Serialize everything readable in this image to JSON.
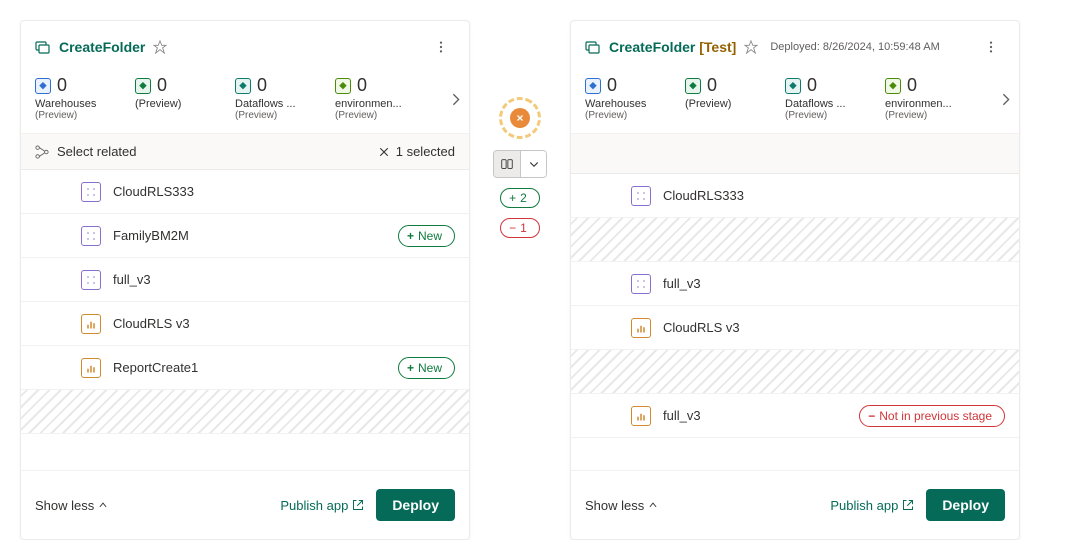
{
  "stageLeft": {
    "title": "CreateFolder",
    "tiles": [
      {
        "count": "0",
        "label": "Warehouses",
        "sub": "(Preview)",
        "iconClass": "ic-blue"
      },
      {
        "count": "0",
        "label": "(Preview)",
        "sub": "",
        "iconClass": "ic-green"
      },
      {
        "count": "0",
        "label": "Dataflows ...",
        "sub": "(Preview)",
        "iconClass": "ic-teal"
      },
      {
        "count": "0",
        "label": "environmen...",
        "sub": "(Preview)",
        "iconClass": "ic-lime"
      }
    ],
    "selectLabel": "Select related",
    "selectedText": "1 selected",
    "items": [
      {
        "type": "model",
        "name": "CloudRLS333"
      },
      {
        "type": "model",
        "name": "FamilyBM2M",
        "badge": "New",
        "badgeKind": "green"
      },
      {
        "type": "model",
        "name": "full_v3"
      },
      {
        "type": "report",
        "name": "CloudRLS v3"
      },
      {
        "type": "report",
        "name": "ReportCreate1",
        "badge": "New",
        "badgeKind": "green"
      },
      {
        "type": "placeholder"
      }
    ],
    "showLess": "Show less",
    "publish": "Publish app",
    "deploy": "Deploy"
  },
  "stageRight": {
    "titleGreen": "CreateFolder ",
    "titleOrange": "[Test]",
    "deployedTs": "Deployed: 8/26/2024, 10:59:48 AM",
    "tiles": [
      {
        "count": "0",
        "label": "Warehouses",
        "sub": "(Preview)",
        "iconClass": "ic-blue"
      },
      {
        "count": "0",
        "label": "(Preview)",
        "sub": "",
        "iconClass": "ic-green"
      },
      {
        "count": "0",
        "label": "Dataflows ...",
        "sub": "(Preview)",
        "iconClass": "ic-teal"
      },
      {
        "count": "0",
        "label": "environmen...",
        "sub": "(Preview)",
        "iconClass": "ic-lime"
      }
    ],
    "items": [
      {
        "type": "model",
        "name": "CloudRLS333"
      },
      {
        "type": "placeholder"
      },
      {
        "type": "model",
        "name": "full_v3"
      },
      {
        "type": "report",
        "name": "CloudRLS v3"
      },
      {
        "type": "placeholder"
      },
      {
        "type": "report",
        "name": "full_v3",
        "badge": "Not in previous stage",
        "badgeKind": "red"
      }
    ],
    "showLess": "Show less",
    "publish": "Publish app",
    "deploy": "Deploy"
  },
  "center": {
    "added": "2",
    "removed": "1"
  }
}
